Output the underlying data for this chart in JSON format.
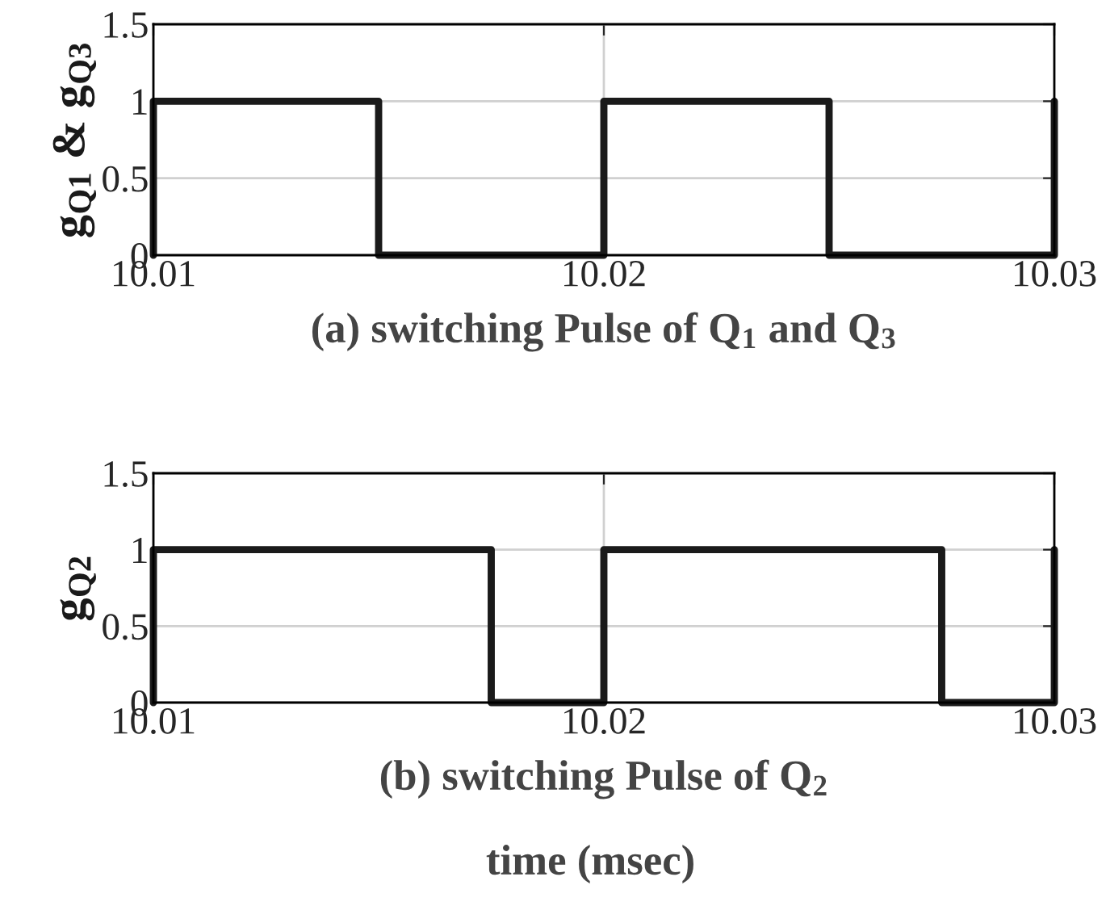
{
  "chart_data": [
    {
      "type": "step",
      "xlabel": "(a) switching Pulse of Q$_{1}$ and Q$_{3}$",
      "ylabel": "g$_{Q1}$ & g$_{Q3}$",
      "x": [
        10.01,
        10.01,
        10.015,
        10.02,
        10.025,
        10.03
      ],
      "values": [
        0,
        1,
        0,
        1,
        0,
        1
      ],
      "color": "#1a1a1a",
      "xlim": [
        10.01,
        10.03
      ],
      "xticks": [
        10.01,
        10.02,
        10.03
      ],
      "ylim": [
        0,
        1.5
      ],
      "yticks": [
        0,
        0.5,
        1,
        1.5
      ],
      "grid": true
    },
    {
      "type": "step",
      "xlabel": "(b) switching Pulse of Q$_{2}$",
      "ylabel": "g$_{Q2}$",
      "x": [
        10.01,
        10.01,
        10.0175,
        10.02,
        10.0275,
        10.03
      ],
      "values": [
        0,
        1,
        0,
        1,
        0,
        1
      ],
      "color": "#1a1a1a",
      "xlim": [
        10.01,
        10.03
      ],
      "xticks": [
        10.01,
        10.02,
        10.03
      ],
      "ylim": [
        0,
        1.5
      ],
      "yticks": [
        0,
        0.5,
        1,
        1.5
      ],
      "grid": true,
      "annotations": [
        "time (msec)"
      ]
    }
  ]
}
